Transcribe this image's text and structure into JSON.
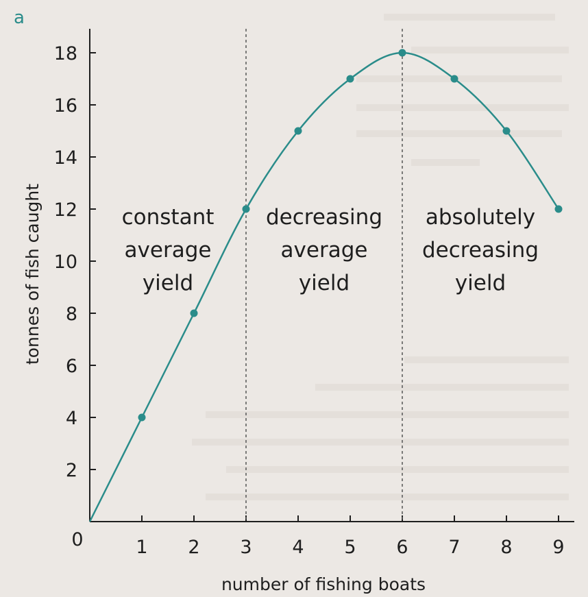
{
  "chart_data": {
    "type": "line",
    "panel_label": "a",
    "xlabel": "number of fishing boats",
    "ylabel": "tonnes of fish caught",
    "x": [
      0,
      1,
      2,
      3,
      4,
      5,
      6,
      7,
      8,
      9
    ],
    "values": [
      0,
      4,
      8,
      12,
      15,
      17,
      18,
      17,
      15,
      12
    ],
    "xlim": [
      0,
      9.3
    ],
    "ylim": [
      0,
      18.8
    ],
    "xticks": [
      1,
      2,
      3,
      4,
      5,
      6,
      7,
      8,
      9
    ],
    "yticks": [
      2,
      4,
      6,
      8,
      10,
      12,
      14,
      16,
      18
    ],
    "origin_label": "0",
    "grid": false,
    "line_color": "#2a8c8a",
    "marker_color": "#2a8c8a",
    "vertical_dividers": [
      3,
      6
    ],
    "regions": [
      {
        "lines": [
          "constant",
          "average",
          "yield"
        ],
        "x_center": 1.5,
        "y_top": 12.0
      },
      {
        "lines": [
          "decreasing",
          "average",
          "yield"
        ],
        "x_center": 4.5,
        "y_top": 12.0
      },
      {
        "lines": [
          "absolutely",
          "decreasing",
          "yield"
        ],
        "x_center": 7.5,
        "y_top": 12.0
      }
    ]
  }
}
